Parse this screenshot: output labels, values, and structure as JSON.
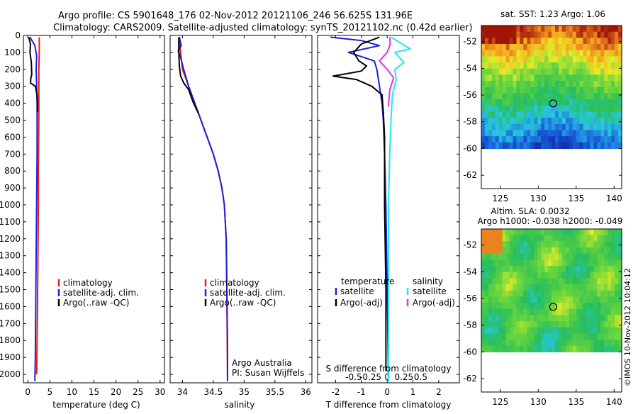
{
  "header": {
    "line1": "Argo profile: CS 5901648_176 02-Nov-2012 20121106_246 56.625S 131.96E",
    "line2": "Climatology: CARS2009. Satellite-adjusted climatology: synTS_20121102.nc (0.42d earlier)"
  },
  "colors": {
    "climatology": "#e41a1c",
    "satellite": "#1f1fd6",
    "argo": "#000000",
    "satellite_salinity": "#22e6ee",
    "argo_salinity": "#e62ee6"
  },
  "chart_data": [
    {
      "type": "line",
      "panel": "temperature",
      "xlabel": "temperature (deg C)",
      "xlim": [
        -1,
        31
      ],
      "xticks": [
        0,
        5,
        10,
        15,
        20,
        25,
        30
      ],
      "ylim": [
        0,
        2050
      ],
      "yticks": [
        0,
        100,
        200,
        300,
        400,
        500,
        600,
        700,
        800,
        900,
        1000,
        1100,
        1200,
        1300,
        1400,
        1500,
        1600,
        1700,
        1800,
        1900,
        2000
      ],
      "y_reversed": true,
      "legend": [
        "climatology",
        "satellite-adj. clim.",
        "Argo(..raw -QC)"
      ],
      "legend_position": "center-right",
      "series": [
        {
          "name": "climatology",
          "color_key": "climatology",
          "x": [
            2.6,
            2.6,
            2.5,
            2.5,
            2.5,
            2.4,
            2.4,
            2.3,
            2.2,
            2.0
          ],
          "y": [
            10,
            100,
            200,
            300,
            500,
            800,
            1000,
            1300,
            1600,
            2000
          ]
        },
        {
          "name": "satellite-adj. clim.",
          "color_key": "satellite",
          "x": [
            0.5,
            1.6,
            2.0,
            1.9,
            2.0,
            2.1,
            2.1,
            2.0,
            1.9,
            1.8,
            1.7,
            1.6
          ],
          "y": [
            10,
            60,
            120,
            200,
            300,
            400,
            700,
            1000,
            1300,
            1600,
            1900,
            2040
          ]
        },
        {
          "name": "Argo(..raw -QC)",
          "color_key": "argo",
          "x": [
            0.2,
            0.6,
            0.5,
            0.8,
            0.9,
            0.7,
            0.6,
            1.7,
            2.1,
            2.2,
            2.2
          ],
          "y": [
            10,
            50,
            100,
            160,
            230,
            250,
            280,
            300,
            350,
            400,
            450
          ]
        }
      ]
    },
    {
      "type": "line",
      "panel": "salinity",
      "xlabel": "salinity",
      "xlim": [
        33.8,
        36.1
      ],
      "xticks": [
        34,
        34.5,
        35,
        35.5,
        36
      ],
      "xticklabels": [
        "34",
        "34.5",
        "35",
        "35.5",
        "36"
      ],
      "ylim": [
        0,
        2050
      ],
      "y_reversed": true,
      "legend": [
        "climatology",
        "satellite-adj. clim.",
        "Argo(..raw -QC)"
      ],
      "legend_position": "center-right",
      "annotations": [
        "Argo Australia",
        "PI: Susan Wijffels"
      ],
      "series": [
        {
          "name": "climatology",
          "color_key": "climatology",
          "x": [
            33.95,
            33.97,
            34.0,
            34.1,
            34.2,
            34.3,
            34.4,
            34.5,
            34.58,
            34.64,
            34.68,
            34.71,
            34.72,
            34.73
          ],
          "y": [
            10,
            100,
            200,
            300,
            400,
            500,
            600,
            700,
            800,
            900,
            1000,
            1200,
            1500,
            2000
          ]
        },
        {
          "name": "satellite-adj. clim.",
          "color_key": "satellite",
          "x": [
            33.95,
            33.98,
            33.93,
            33.97,
            34.02,
            34.1,
            34.2,
            34.3,
            34.4,
            34.5,
            34.58,
            34.64,
            34.68,
            34.71,
            34.72,
            34.73,
            34.73
          ],
          "y": [
            10,
            60,
            90,
            130,
            200,
            300,
            400,
            500,
            600,
            700,
            800,
            900,
            1000,
            1200,
            1500,
            1800,
            2040
          ]
        },
        {
          "name": "Argo(..raw -QC)",
          "color_key": "argo",
          "x": [
            33.94,
            33.94,
            33.95,
            33.97,
            34.02,
            34.1,
            34.18,
            34.26
          ],
          "y": [
            10,
            100,
            180,
            240,
            280,
            320,
            400,
            460
          ]
        }
      ]
    },
    {
      "type": "line",
      "panel": "difference from climatology",
      "xlabel": "T difference from climatology",
      "xlabel_top": "S difference from climatology",
      "xlim": [
        -2.7,
        2.8
      ],
      "xticks_bottom": [
        -2,
        -1,
        0,
        1,
        2
      ],
      "xticks_top": [
        -0.5,
        -0.25,
        0,
        0.25,
        0.5
      ],
      "xticklabels_top": [
        "-0.5",
        "-0.25",
        "0",
        "0.25",
        "0.5"
      ],
      "ylim": [
        0,
        2050
      ],
      "y_reversed": true,
      "legend": {
        "temperature_title": "temperature",
        "salinity_title": "salinity",
        "temperature_items": [
          "satellite",
          "Argo(-adj)"
        ],
        "salinity_items": [
          "satellite",
          "Argo(-adj)"
        ]
      },
      "legend_position": "center",
      "series": [
        {
          "name": "temperature satellite",
          "color_key": "satellite",
          "x": [
            -2.2,
            -1.0,
            -0.3,
            -1.5,
            -0.5,
            -0.4,
            -0.3,
            -0.2,
            -0.15,
            -0.1,
            -0.05,
            0,
            0.05
          ],
          "y": [
            10,
            30,
            60,
            100,
            150,
            200,
            300,
            400,
            500,
            700,
            1000,
            1500,
            2040
          ]
        },
        {
          "name": "temperature Argo(-adj)",
          "color_key": "argo",
          "x": [
            -0.3,
            -1.0,
            -1.3,
            -1.1,
            -0.8,
            -1.0,
            -2.1,
            -1.2,
            -0.6,
            -0.2,
            -0.15,
            -0.1,
            -0.1,
            -0.05,
            -0.05
          ],
          "y": [
            10,
            50,
            100,
            150,
            180,
            210,
            240,
            260,
            300,
            350,
            450,
            600,
            1000,
            1500,
            1980
          ]
        },
        {
          "name": "salinity satellite",
          "color_key": "satellite_salinity",
          "x": [
            0.15,
            0.9,
            0.3,
            0.65,
            0.3,
            0.35,
            0.2,
            0.15,
            0.1,
            0.05,
            0.05
          ],
          "y": [
            10,
            80,
            100,
            160,
            200,
            260,
            350,
            500,
            700,
            1000,
            2040
          ]
        },
        {
          "name": "salinity Argo(-adj)",
          "color_key": "argo_salinity",
          "x": [
            0.1,
            0.12,
            0.0,
            -0.3,
            0.0,
            0.25,
            0.1,
            0.05
          ],
          "y": [
            10,
            50,
            100,
            150,
            200,
            250,
            320,
            420
          ]
        }
      ]
    },
    {
      "type": "heatmap",
      "panel": "sat. SST map",
      "title": "sat. SST: 1.23 Argo: 1.06",
      "xticks": [
        125,
        130,
        135,
        140
      ],
      "yticks": [
        -52,
        -54,
        -56,
        -58,
        -60,
        -62
      ],
      "xlim": [
        122.5,
        141
      ],
      "ylim": [
        -63,
        -50.8
      ],
      "data_ylim": [
        -60,
        -50.8
      ],
      "marker": {
        "lon": 131.96,
        "lat": -56.625,
        "shape": "circle"
      }
    },
    {
      "type": "heatmap",
      "panel": "Altim. SLA map",
      "title_line1": "Altim. SLA: 0.0032",
      "title_line2": "Argo h1000: -0.038 h2000: -0.049",
      "xticks": [
        125,
        130,
        135,
        140
      ],
      "yticks": [
        -52,
        -54,
        -56,
        -58,
        -60,
        -62
      ],
      "xlim": [
        122.5,
        141
      ],
      "ylim": [
        -63,
        -50.8
      ],
      "data_ylim": [
        -60,
        -50.8
      ],
      "marker": {
        "lon": 131.96,
        "lat": -56.625,
        "shape": "circle"
      }
    }
  ],
  "footer": {
    "stamp": "©IMOS 10-Nov-2012 10:04:12"
  }
}
